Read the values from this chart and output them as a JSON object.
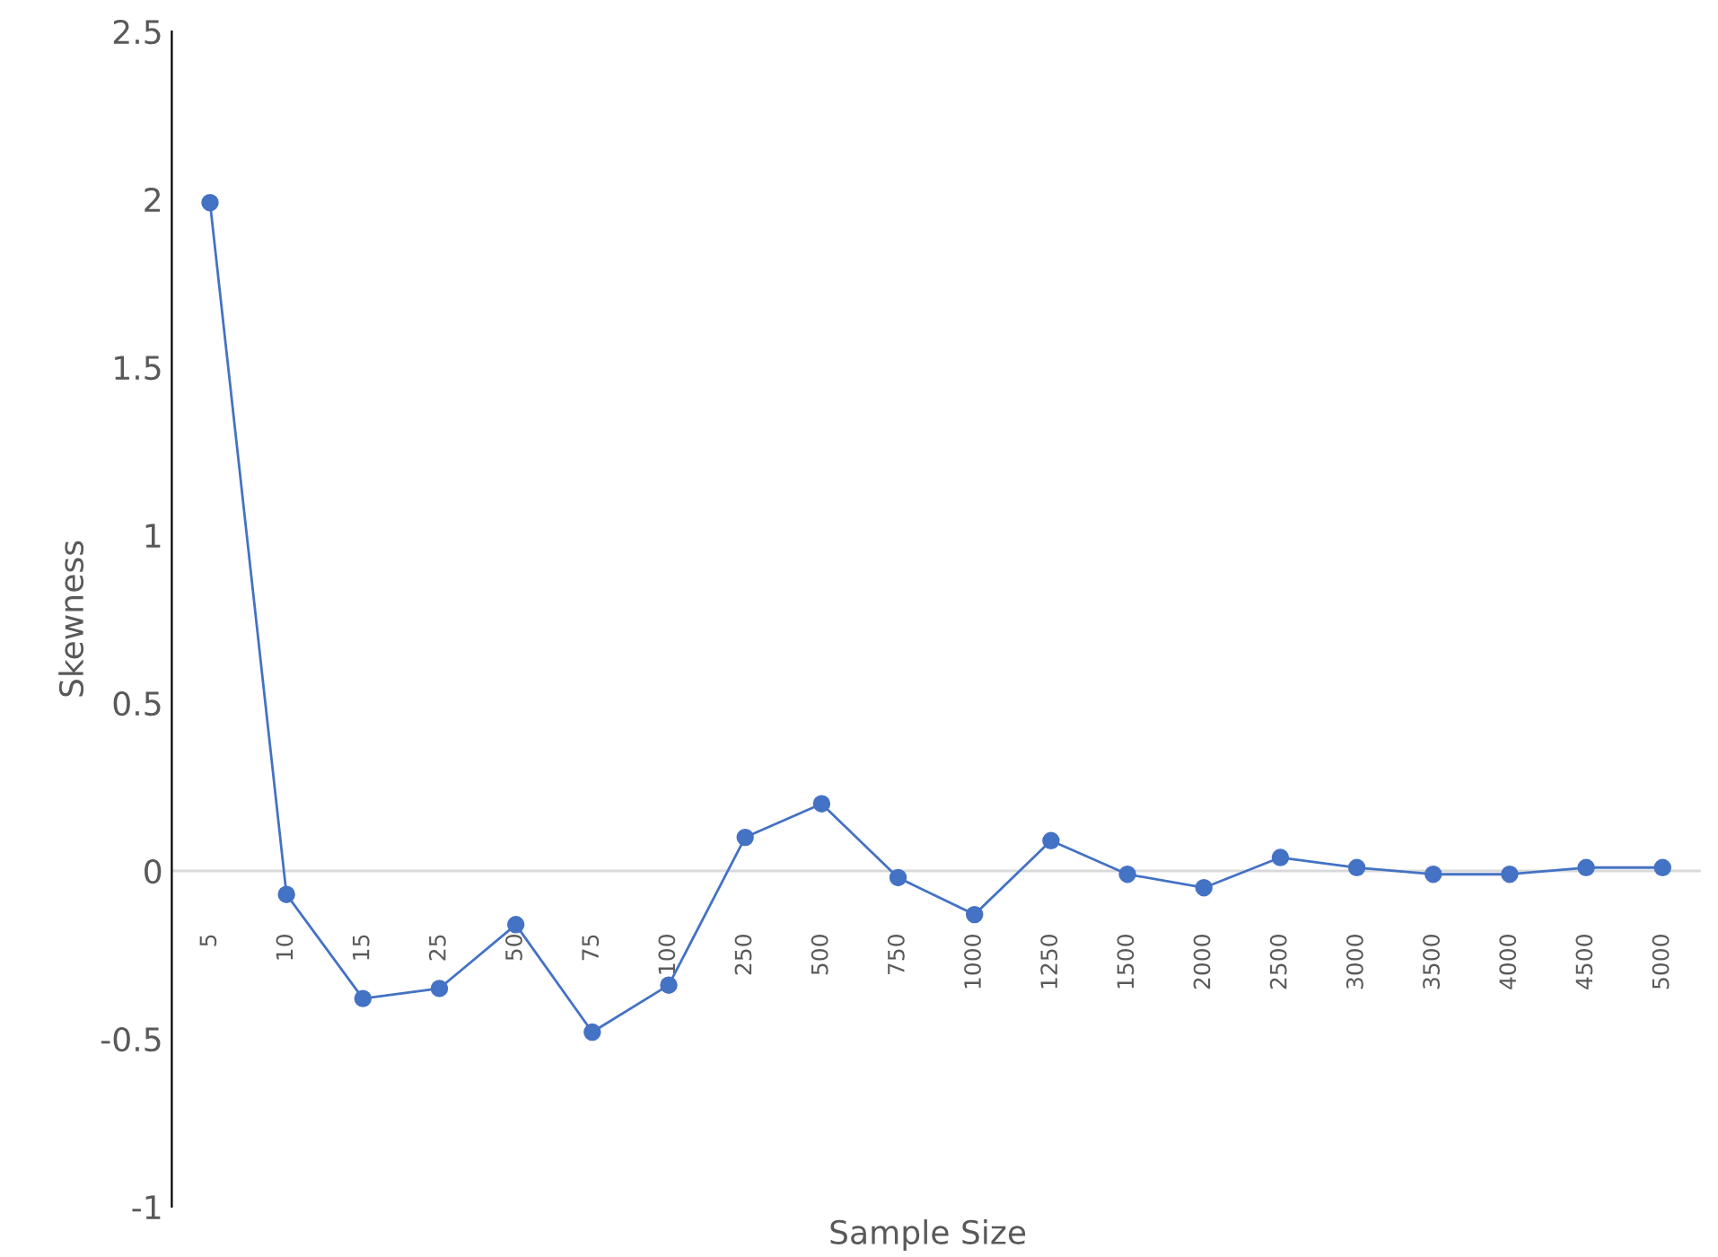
{
  "chart_data": {
    "type": "line",
    "xlabel": "Sample Size",
    "ylabel": "Skewness",
    "categories": [
      "5",
      "10",
      "15",
      "25",
      "50",
      "75",
      "100",
      "250",
      "500",
      "750",
      "1000",
      "1250",
      "1500",
      "2000",
      "2500",
      "3000",
      "3500",
      "4000",
      "4500",
      "5000"
    ],
    "series": [
      {
        "color": "#4472c4",
        "values": [
          1.99,
          -0.07,
          -0.38,
          -0.35,
          -0.16,
          -0.48,
          -0.34,
          0.1,
          0.2,
          -0.02,
          -0.13,
          0.09,
          -0.01,
          -0.05,
          0.04,
          0.01,
          -0.01,
          -0.01,
          0.01,
          0.01
        ]
      }
    ],
    "ylim": [
      -1,
      2.5
    ],
    "yticks": [
      {
        "value": -1,
        "label": "-1"
      },
      {
        "value": -0.5,
        "label": "-0.5"
      },
      0,
      0.5,
      1,
      1.5,
      2,
      2.5
    ],
    "marker": "circle",
    "line_style": "solid",
    "ref_lines": [
      {
        "axis": "y",
        "value": 0,
        "color": "#d9d9d9"
      }
    ]
  }
}
